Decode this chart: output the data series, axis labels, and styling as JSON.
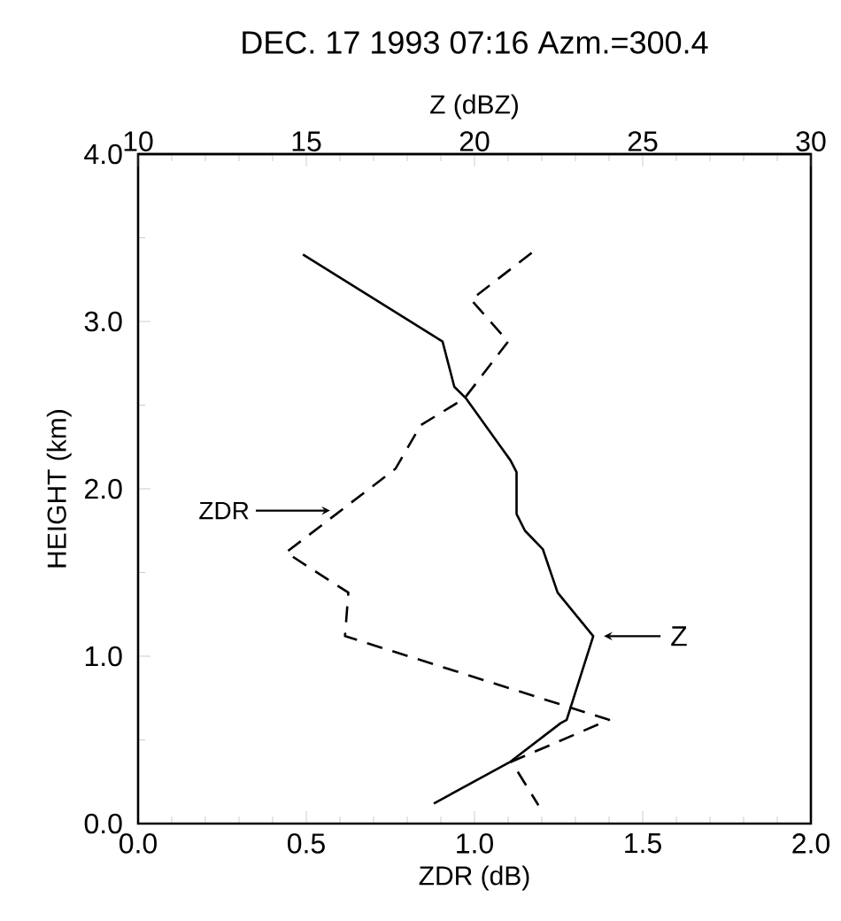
{
  "chart_data": {
    "type": "line",
    "title": "DEC. 17 1993 07:16  Azm.=300.4",
    "xlabel": "ZDR  (dB)",
    "x2label": "Z  (dBZ)",
    "ylabel": "HEIGHT (km)",
    "xlim": [
      0,
      2
    ],
    "xticks": [
      {
        "value": 0,
        "label": "0.0"
      },
      {
        "value": 0.5,
        "label": "0.5"
      },
      {
        "value": 1,
        "label": "1.0"
      },
      {
        "value": 1.5,
        "label": "1.5"
      },
      {
        "value": 2,
        "label": "2.0"
      }
    ],
    "x2lim": [
      10,
      30
    ],
    "x2ticks": [
      10,
      15,
      20,
      25,
      30
    ],
    "ylim": [
      0,
      4
    ],
    "yticks": [
      {
        "value": 0,
        "label": "0.0"
      },
      {
        "value": 1,
        "label": "1.0"
      },
      {
        "value": 2,
        "label": "2.0"
      },
      {
        "value": 3,
        "label": "3.0"
      },
      {
        "value": 4,
        "label": "4.0"
      }
    ],
    "grid": false,
    "marker": "none",
    "series": [
      {
        "name": "ZDR",
        "color": "#000000",
        "line_style": "dashed",
        "x": [
          1.17,
          0.99,
          1.1,
          0.97,
          0.84,
          0.765,
          0.44,
          0.625,
          0.615,
          1.4,
          1.11,
          1.19
        ],
        "values": [
          3.41,
          3.13,
          2.88,
          2.54,
          2.38,
          2.12,
          1.62,
          1.38,
          1.12,
          0.62,
          0.37,
          0.11
        ]
      },
      {
        "name": "Z",
        "color": "#000000",
        "line_style": "solid",
        "axis": "x2",
        "x": [
          14.9,
          19.05,
          19.4,
          19.75,
          21.07,
          21.25,
          21.25,
          21.5,
          22.03,
          22.47,
          23.53,
          22.74,
          22.56,
          21.07,
          18.79
        ],
        "values": [
          3.4,
          2.88,
          2.61,
          2.54,
          2.17,
          2.1,
          1.85,
          1.75,
          1.64,
          1.38,
          1.12,
          0.62,
          0.6,
          0.37,
          0.12
        ]
      }
    ]
  }
}
